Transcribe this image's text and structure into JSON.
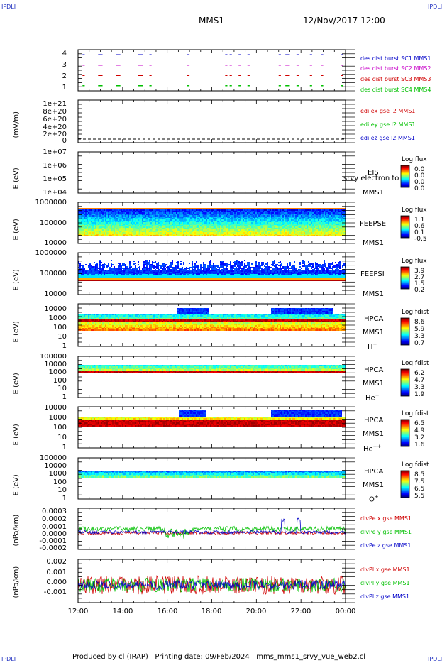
{
  "corners": {
    "tl": "IPDLI",
    "tr": "IPDLI",
    "bl": "IPDLI",
    "br": "IPDLI"
  },
  "header": {
    "title": "MMS1",
    "date": "12/Nov/2017 12:00"
  },
  "footer": {
    "text": "Produced by cl (IRAP)   Printing date: 09/Feb/2024   mms_mms1_srvy_vue_web2.cl"
  },
  "x_axis": {
    "ticks": [
      "12:00",
      "14:00",
      "16:00",
      "18:00",
      "20:00",
      "22:00",
      "00:00"
    ]
  },
  "panels": {
    "burst": {
      "ticks": [
        "4",
        "3",
        "2",
        "1"
      ],
      "labels": [
        {
          "text": "des dist burst SC1 MMS1",
          "color": "#0000c8"
        },
        {
          "text": "des dist burst SC2 MMS2",
          "color": "#c800c8"
        },
        {
          "text": "des dist burst SC3 MMS3",
          "color": "#d00000"
        },
        {
          "text": "des dist burst SC4 MMS4",
          "color": "#00c000"
        }
      ]
    },
    "edi": {
      "ylabel": "(mV/m)",
      "ticks": [
        "1e+21",
        "8e+20",
        "6e+20",
        "4e+20",
        "2e+20",
        "0"
      ],
      "labels": [
        {
          "text": "edi ex gse l2 MMS1",
          "color": "#d00000"
        },
        {
          "text": "edi ey gse l2 MMS1",
          "color": "#00c000"
        },
        {
          "text": "edi ez gse l2 MMS1",
          "color": "#0000c8"
        }
      ]
    },
    "eis": {
      "ylabel": "E (eV)",
      "ticks": [
        "1e+07",
        "1e+06",
        "1e+05",
        "1e+04"
      ],
      "inst": "EIS",
      "inst2": "MMS1",
      "overlay": "srvy electron to",
      "cbar_title": "Log flux",
      "cbar_vals": [
        "0.0",
        "0.0",
        "0.0",
        "0.0"
      ]
    },
    "feepse": {
      "ylabel": "E (eV)",
      "ticks": [
        "1000000",
        "100000",
        "10000"
      ],
      "inst": "FEEPSE",
      "inst2": "MMS1",
      "cbar_title": "Log flux",
      "cbar_vals": [
        "1.1",
        "0.6",
        "0.1",
        "-0.5"
      ]
    },
    "feepsi": {
      "ylabel": "E (eV)",
      "ticks": [
        "1000000",
        "100000",
        "10000"
      ],
      "inst": "FEEPSI",
      "inst2": "MMS1",
      "cbar_title": "Log flux",
      "cbar_vals": [
        "3.9",
        "2.7",
        "1.5",
        "0.2"
      ]
    },
    "hpca_h": {
      "ylabel": "E (eV)",
      "ticks": [
        "10000",
        "1000",
        "100",
        "10",
        "1"
      ],
      "inst": "HPCA",
      "inst2": "MMS1",
      "species": "H",
      "charge": "+",
      "cbar_title": "Log fdist",
      "cbar_vals": [
        "8.6",
        "5.9",
        "3.3",
        "0.7"
      ]
    },
    "hpca_he": {
      "ylabel": "E (eV)",
      "ticks": [
        "100000",
        "10000",
        "1000",
        "100",
        "10",
        "1"
      ],
      "inst": "HPCA",
      "inst2": "MMS1",
      "species": "He",
      "charge": "+",
      "cbar_title": "Log fdist",
      "cbar_vals": [
        "6.2",
        "4.7",
        "3.3",
        "1.9"
      ]
    },
    "hpca_hepp": {
      "ylabel": "E (eV)",
      "ticks": [
        "10000",
        "1000",
        "100",
        "10",
        "1"
      ],
      "inst": "HPCA",
      "inst2": "MMS1",
      "species": "He",
      "charge": "++",
      "cbar_title": "Log fdist",
      "cbar_vals": [
        "6.5",
        "4.9",
        "3.2",
        "1.6"
      ]
    },
    "hpca_o": {
      "ylabel": "E (eV)",
      "ticks": [
        "100000",
        "10000",
        "1000",
        "100",
        "10",
        "1"
      ],
      "inst": "HPCA",
      "inst2": "MMS1",
      "species": "O",
      "charge": "+",
      "cbar_title": "Log fdist",
      "cbar_vals": [
        "8.5",
        "7.5",
        "6.5",
        "5.5"
      ]
    },
    "divpe": {
      "ylabel": "(nPa/km)",
      "ticks": [
        "0.0003",
        "0.0002",
        "0.0001",
        "0.0000",
        "-0.0001",
        "-0.0002"
      ],
      "labels": [
        {
          "text": "dlvPe x gse MMS1",
          "color": "#d00000"
        },
        {
          "text": "dlvPe y gse MMS1",
          "color": "#00c000"
        },
        {
          "text": "dlvPe z gse MMS1",
          "color": "#0000c8"
        }
      ]
    },
    "divpi": {
      "ylabel": "(nPa/km)",
      "ticks": [
        "0.002",
        "0.001",
        "0.000",
        "-0.001"
      ],
      "labels": [
        {
          "text": "dlvPl x gse MMS1",
          "color": "#d00000"
        },
        {
          "text": "dlvPl y gse MMS1",
          "color": "#00c000"
        },
        {
          "text": "dlvPl z gse MMS1",
          "color": "#0000c8"
        }
      ]
    }
  },
  "chart_data": [
    {
      "type": "scatter",
      "panel": "burst",
      "title": "",
      "ylim": [
        0.5,
        4.5
      ],
      "yticks": [
        1,
        2,
        3,
        4
      ],
      "series": [
        {
          "name": "des dist burst SC1 MMS1",
          "y": 4
        },
        {
          "name": "des dist burst SC2 MMS2",
          "y": 3
        },
        {
          "name": "des dist burst SC3 MMS3",
          "y": 2
        },
        {
          "name": "des dist burst SC4 MMS4",
          "y": 1
        }
      ],
      "burst_intervals_hours": [
        [
          12.2,
          12.3
        ],
        [
          12.9,
          13.1
        ],
        [
          13.7,
          13.9
        ],
        [
          14.7,
          14.9
        ],
        [
          15.2,
          15.3
        ],
        [
          16.9,
          17.0
        ],
        [
          18.6,
          18.7
        ],
        [
          18.8,
          18.9
        ],
        [
          19.2,
          19.3
        ],
        [
          19.6,
          19.7
        ],
        [
          21.0,
          21.1
        ],
        [
          21.3,
          21.5
        ],
        [
          21.8,
          21.9
        ],
        [
          22.4,
          22.5
        ],
        [
          22.9,
          23.0
        ],
        [
          23.8,
          23.9
        ]
      ]
    },
    {
      "type": "line",
      "panel": "edi",
      "ylim": [
        0,
        1e+21
      ],
      "ylabel": "(mV/m)",
      "x_range_hours": [
        12,
        24
      ],
      "series": [
        {
          "name": "edi ex gse l2 MMS1",
          "values": [
            0,
            0
          ]
        },
        {
          "name": "edi ey gse l2 MMS1",
          "values": [
            0,
            0
          ]
        },
        {
          "name": "edi ez gse l2 MMS1",
          "values": [
            0,
            0
          ]
        }
      ]
    },
    {
      "type": "heatmap",
      "panel": "eis",
      "ylog": true,
      "ylim": [
        10000.0,
        10000000.0
      ],
      "ylabel": "E (eV)",
      "note": "no data"
    },
    {
      "type": "heatmap",
      "panel": "feepse",
      "ylog": true,
      "ylim": [
        10000.0,
        1000000.0
      ],
      "ylabel": "E (eV)",
      "band_eV": [
        30000,
        600000
      ],
      "cbar": [
        -0.5,
        1.1
      ]
    },
    {
      "type": "heatmap",
      "panel": "feepsi",
      "ylog": true,
      "ylim": [
        10000.0,
        1000000.0
      ],
      "ylabel": "E (eV)",
      "band_eV": [
        50000,
        300000
      ],
      "cbar": [
        0.2,
        3.9
      ]
    },
    {
      "type": "heatmap",
      "panel": "hpca_h",
      "ylog": true,
      "ylim": [
        1,
        40000
      ],
      "ylabel": "E (eV)",
      "cbar": [
        0.7,
        8.6
      ],
      "high_energy_intervals_hours": [
        [
          16.4,
          17.8
        ],
        [
          20.6,
          23.4
        ]
      ]
    },
    {
      "type": "heatmap",
      "panel": "hpca_he",
      "ylog": true,
      "ylim": [
        1,
        100000
      ],
      "ylabel": "E (eV)",
      "cbar": [
        1.9,
        6.2
      ]
    },
    {
      "type": "heatmap",
      "panel": "hpca_hepp",
      "ylog": true,
      "ylim": [
        1,
        10000
      ],
      "ylabel": "E (eV)",
      "cbar": [
        1.6,
        6.5
      ],
      "high_energy_intervals_hours": [
        [
          16.5,
          17.7
        ],
        [
          20.6,
          23.8
        ]
      ]
    },
    {
      "type": "heatmap",
      "panel": "hpca_o",
      "ylog": true,
      "ylim": [
        1,
        100000
      ],
      "ylabel": "E (eV)",
      "cbar": [
        5.5,
        8.5
      ]
    },
    {
      "type": "line",
      "panel": "divpe",
      "ylabel": "(nPa/km)",
      "ylim": [
        -0.0002,
        0.0003
      ],
      "x_range_hours": [
        12,
        24
      ],
      "series": [
        {
          "name": "dlvPe x gse MMS1",
          "values": [
            0.0,
            0.0
          ]
        },
        {
          "name": "dlvPe y gse MMS1",
          "values": [
            3e-05,
            0.0001
          ]
        },
        {
          "name": "dlvPe z gse MMS1",
          "values": [
            0.0,
            5e-05
          ]
        }
      ]
    },
    {
      "type": "line",
      "panel": "divpi",
      "ylabel": "(nPa/km)",
      "ylim": [
        -0.0015,
        0.0022
      ],
      "x_range_hours": [
        12,
        24
      ],
      "series": [
        {
          "name": "dlvPl x gse MMS1",
          "values": [
            0.0,
            0.0
          ]
        },
        {
          "name": "dlvPl y gse MMS1",
          "values": [
            0.0,
            0.0
          ]
        },
        {
          "name": "dlvPl z gse MMS1",
          "values": [
            0.0,
            0.0
          ]
        }
      ]
    }
  ]
}
